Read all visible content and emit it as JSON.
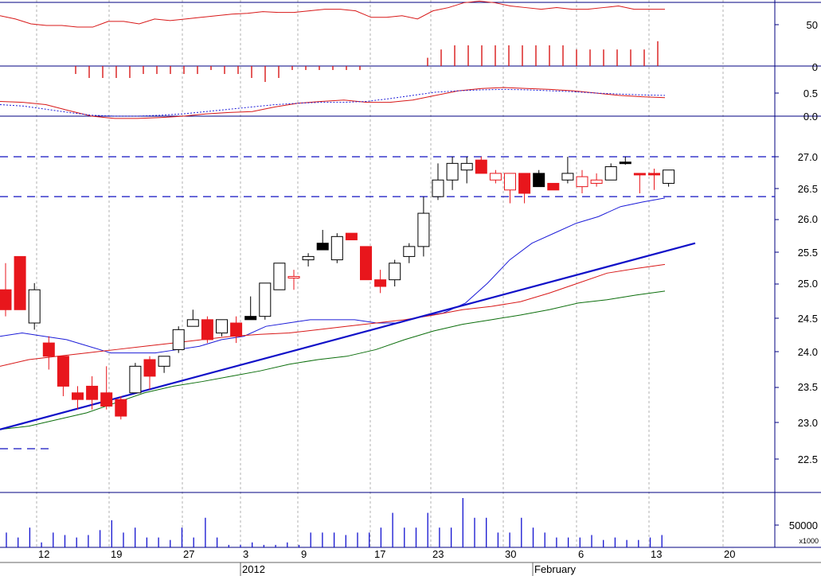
{
  "colors": {
    "background": "#ffffff",
    "frame": "#000080",
    "grid": "#b0b0b0",
    "bull_outline": "#000000",
    "bull_fill": "#ffffff",
    "bear": "#e8161c",
    "black_candle": "#000000",
    "ma_blue": "#1c1cd8",
    "ma_red": "#d81818",
    "ma_green": "#0c6e0c",
    "trend_line": "#1010c8",
    "volume": "#1010d0",
    "resistance_dash": "#1010c0"
  },
  "panels": {
    "rsi": {
      "tick_labels": [
        "50",
        "0"
      ]
    },
    "macd": {
      "tick_labels": [
        "0.5",
        "0.0"
      ]
    },
    "price": {
      "tick_labels": [
        "27.0",
        "26.5",
        "26.0",
        "25.5",
        "25.0",
        "24.5",
        "24.0",
        "23.5",
        "23.0",
        "22.5"
      ]
    },
    "volume": {
      "tick_labels": [
        "50000"
      ],
      "multiplier_label": "x1000"
    }
  },
  "x_axis": {
    "day_labels": [
      "12",
      "19",
      "27",
      "3",
      "9",
      "17",
      "23",
      "30",
      "6",
      "13",
      "20"
    ],
    "month_labels": [
      "2012",
      "February"
    ]
  },
  "chart_data": {
    "type": "candlestick",
    "y_range": [
      22.0,
      27.5
    ],
    "candles": [
      {
        "o": 25.0,
        "h": 25.4,
        "l": 24.6,
        "c": 24.7,
        "dir": "down"
      },
      {
        "o": 25.5,
        "h": 25.5,
        "l": 24.7,
        "c": 24.7,
        "dir": "down"
      },
      {
        "o": 24.5,
        "h": 25.1,
        "l": 24.4,
        "c": 25.0,
        "dir": "up"
      },
      {
        "o": 24.2,
        "h": 24.3,
        "l": 23.8,
        "c": 24.0,
        "dir": "down"
      },
      {
        "o": 24.0,
        "h": 24.0,
        "l": 23.4,
        "c": 23.55,
        "dir": "down"
      },
      {
        "o": 23.45,
        "h": 23.55,
        "l": 23.2,
        "c": 23.35,
        "dir": "down"
      },
      {
        "o": 23.55,
        "h": 23.7,
        "l": 23.2,
        "c": 23.35,
        "dir": "down"
      },
      {
        "o": 23.45,
        "h": 23.85,
        "l": 23.2,
        "c": 23.25,
        "dir": "down"
      },
      {
        "o": 23.35,
        "h": 23.4,
        "l": 23.05,
        "c": 23.1,
        "dir": "down"
      },
      {
        "o": 23.45,
        "h": 23.9,
        "l": 23.45,
        "c": 23.85,
        "dir": "up"
      },
      {
        "o": 23.95,
        "h": 24.0,
        "l": 23.5,
        "c": 23.7,
        "dir": "down"
      },
      {
        "o": 23.85,
        "h": 24.0,
        "l": 23.75,
        "c": 24.0,
        "dir": "up"
      },
      {
        "o": 24.1,
        "h": 24.45,
        "l": 24.05,
        "c": 24.4,
        "dir": "up"
      },
      {
        "o": 24.45,
        "h": 24.7,
        "l": 24.45,
        "c": 24.55,
        "dir": "up"
      },
      {
        "o": 24.55,
        "h": 24.6,
        "l": 24.2,
        "c": 24.25,
        "dir": "down"
      },
      {
        "o": 24.35,
        "h": 24.55,
        "l": 24.3,
        "c": 24.55,
        "dir": "up"
      },
      {
        "o": 24.5,
        "h": 24.6,
        "l": 24.2,
        "c": 24.3,
        "dir": "down"
      },
      {
        "o": 24.55,
        "h": 24.9,
        "l": 24.55,
        "c": 24.6,
        "dir": "black"
      },
      {
        "o": 24.6,
        "h": 25.1,
        "l": 24.55,
        "c": 25.1,
        "dir": "up"
      },
      {
        "o": 25.0,
        "h": 25.4,
        "l": 25.0,
        "c": 25.4,
        "dir": "up"
      },
      {
        "o": 25.2,
        "h": 25.3,
        "l": 25.0,
        "c": 25.2,
        "dir": "down_hollow"
      },
      {
        "o": 25.45,
        "h": 25.55,
        "l": 25.35,
        "c": 25.5,
        "dir": "up"
      },
      {
        "o": 25.6,
        "h": 25.9,
        "l": 25.6,
        "c": 25.7,
        "dir": "black"
      },
      {
        "o": 25.45,
        "h": 25.85,
        "l": 25.4,
        "c": 25.8,
        "dir": "up"
      },
      {
        "o": 25.85,
        "h": 25.85,
        "l": 25.75,
        "c": 25.75,
        "dir": "down"
      },
      {
        "o": 25.65,
        "h": 25.65,
        "l": 25.15,
        "c": 25.15,
        "dir": "down"
      },
      {
        "o": 25.15,
        "h": 25.3,
        "l": 24.95,
        "c": 25.05,
        "dir": "down"
      },
      {
        "o": 25.15,
        "h": 25.45,
        "l": 25.05,
        "c": 25.4,
        "dir": "up"
      },
      {
        "o": 25.5,
        "h": 25.7,
        "l": 25.4,
        "c": 25.65,
        "dir": "up"
      },
      {
        "o": 25.65,
        "h": 26.4,
        "l": 25.5,
        "c": 26.15,
        "dir": "up"
      },
      {
        "o": 26.4,
        "h": 26.9,
        "l": 26.35,
        "c": 26.65,
        "dir": "up"
      },
      {
        "o": 26.65,
        "h": 27.0,
        "l": 26.5,
        "c": 26.9,
        "dir": "up"
      },
      {
        "o": 26.8,
        "h": 27.0,
        "l": 26.6,
        "c": 26.9,
        "dir": "up"
      },
      {
        "o": 26.95,
        "h": 27.0,
        "l": 26.75,
        "c": 26.75,
        "dir": "down"
      },
      {
        "o": 26.75,
        "h": 26.8,
        "l": 26.6,
        "c": 26.65,
        "dir": "down_hollow"
      },
      {
        "o": 26.75,
        "h": 26.75,
        "l": 26.3,
        "c": 26.5,
        "dir": "down_hollow"
      },
      {
        "o": 26.75,
        "h": 26.75,
        "l": 26.3,
        "c": 26.45,
        "dir": "down"
      },
      {
        "o": 26.75,
        "h": 26.8,
        "l": 26.55,
        "c": 26.55,
        "dir": "black"
      },
      {
        "o": 26.6,
        "h": 26.6,
        "l": 26.5,
        "c": 26.5,
        "dir": "down"
      },
      {
        "o": 26.65,
        "h": 27.0,
        "l": 26.6,
        "c": 26.75,
        "dir": "up"
      },
      {
        "o": 26.7,
        "h": 26.8,
        "l": 26.45,
        "c": 26.55,
        "dir": "down_hollow"
      },
      {
        "o": 26.65,
        "h": 26.75,
        "l": 26.55,
        "c": 26.6,
        "dir": "down_hollow"
      },
      {
        "o": 26.65,
        "h": 26.9,
        "l": 26.65,
        "c": 26.85,
        "dir": "up"
      },
      {
        "o": 26.92,
        "h": 27.0,
        "l": 26.88,
        "c": 26.9,
        "dir": "black"
      },
      {
        "o": 26.75,
        "h": 26.75,
        "l": 26.45,
        "c": 26.75,
        "dir": "down"
      },
      {
        "o": 26.75,
        "h": 26.82,
        "l": 26.5,
        "c": 26.75,
        "dir": "down"
      },
      {
        "o": 26.6,
        "h": 26.8,
        "l": 26.55,
        "c": 26.8,
        "dir": "up"
      }
    ],
    "ma_blue": [
      24.3,
      24.35,
      24.3,
      24.25,
      24.15,
      24.05,
      24.05,
      24.05,
      24.1,
      24.15,
      24.25,
      24.3,
      24.45,
      24.5,
      24.55,
      24.55,
      24.55,
      24.5,
      24.5,
      24.6,
      24.65,
      24.8,
      25.1,
      25.45,
      25.7,
      25.85,
      26.0,
      26.1,
      26.25,
      26.32,
      26.38
    ],
    "ma_red": [
      23.85,
      23.95,
      24.0,
      24.05,
      24.1,
      24.15,
      24.2,
      24.25,
      24.3,
      24.33,
      24.35,
      24.4,
      24.45,
      24.5,
      24.55,
      24.62,
      24.7,
      24.75,
      24.82,
      24.95,
      25.1,
      25.25,
      25.32,
      25.38
    ],
    "ma_green": [
      22.9,
      22.95,
      23.05,
      23.15,
      23.3,
      23.45,
      23.55,
      23.62,
      23.7,
      23.78,
      23.88,
      23.95,
      24.0,
      24.1,
      24.25,
      24.38,
      24.48,
      24.55,
      24.62,
      24.7,
      24.8,
      24.85,
      24.92,
      24.98
    ],
    "trend_line": {
      "start": 22.9,
      "end": 25.7
    },
    "resistance": [
      27.0,
      26.4
    ],
    "volume": [
      30,
      20,
      40,
      10,
      30,
      25,
      20,
      25,
      35,
      55,
      30,
      40,
      20,
      20,
      15,
      40,
      20,
      60,
      20,
      5,
      5,
      10,
      5,
      5,
      10,
      5,
      30,
      30,
      30,
      25,
      30,
      30,
      40,
      70,
      40,
      40,
      70,
      40,
      40,
      100,
      60,
      60,
      30,
      30,
      60,
      40,
      30,
      20,
      20,
      20,
      25,
      15,
      20,
      15,
      15,
      20,
      25
    ],
    "rsi": [
      62,
      58,
      52,
      50,
      50,
      48,
      48,
      55,
      55,
      52,
      58,
      56,
      58,
      60,
      62,
      64,
      65,
      67,
      66,
      66,
      68,
      70,
      70,
      68,
      60,
      60,
      62,
      58,
      68,
      72,
      78,
      80,
      78,
      74,
      72,
      70,
      72,
      70,
      70,
      72,
      74,
      70,
      70,
      70
    ],
    "rsi_bars": [
      0,
      0,
      0,
      0,
      0,
      -2,
      -3,
      -3,
      -3,
      -3,
      -2,
      -2,
      -2,
      -2,
      -2,
      -1,
      -2,
      -2,
      -3,
      -4,
      -3,
      -1,
      -1,
      -1,
      -1,
      -1,
      -1,
      0,
      0,
      0,
      0,
      2,
      4,
      5,
      5,
      5,
      5,
      5,
      5,
      5,
      5,
      5,
      4,
      4,
      4,
      4,
      4,
      4,
      6
    ],
    "macd": [
      0.32,
      0.3,
      0.25,
      0.12,
      0.0,
      -0.05,
      -0.05,
      -0.03,
      0.0,
      0.05,
      0.08,
      0.1,
      0.2,
      0.28,
      0.32,
      0.35,
      0.3,
      0.3,
      0.35,
      0.45,
      0.55,
      0.6,
      0.62,
      0.6,
      0.58,
      0.55,
      0.5,
      0.45,
      0.42,
      0.4
    ],
    "macd_signal": [
      0.25,
      0.22,
      0.15,
      0.08,
      0.02,
      0.0,
      0.0,
      0.02,
      0.05,
      0.1,
      0.15,
      0.2,
      0.25,
      0.28,
      0.3,
      0.3,
      0.32,
      0.38,
      0.45,
      0.52,
      0.55,
      0.57,
      0.58,
      0.57,
      0.55,
      0.53,
      0.5,
      0.48,
      0.46,
      0.45
    ]
  }
}
